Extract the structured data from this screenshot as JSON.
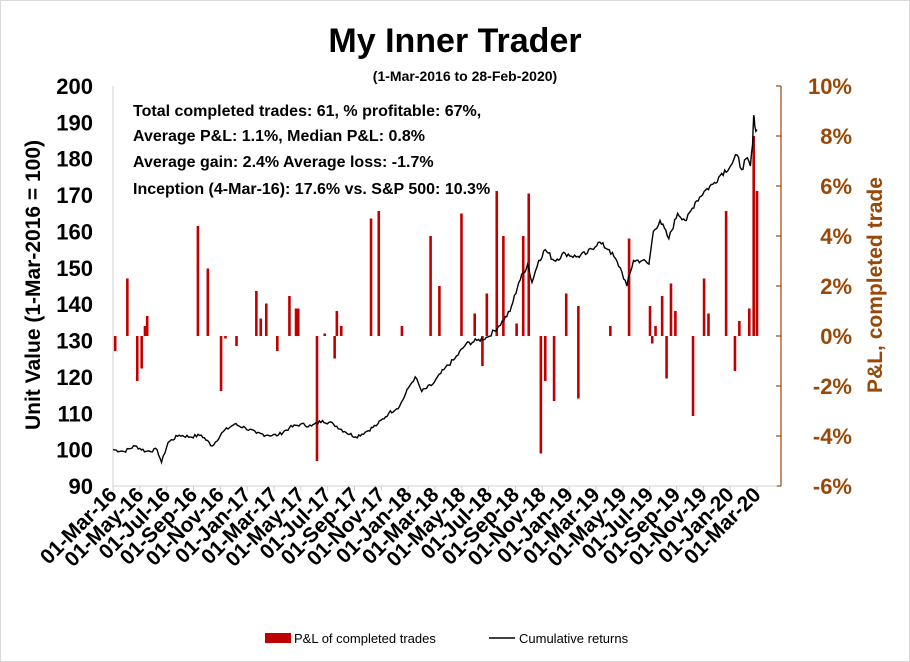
{
  "chart_data": {
    "type": "bar+line",
    "title": "My Inner Trader",
    "subtitle": "(1-Mar-2016 to 28-Feb-2020)",
    "y_left": {
      "label": "Unit Value (1-Mar-2016 = 100)",
      "lim": [
        90,
        200
      ],
      "ticks": [
        "90",
        "100",
        "110",
        "120",
        "130",
        "140",
        "150",
        "160",
        "170",
        "180",
        "190",
        "200"
      ]
    },
    "y_right": {
      "label": "P&L, completed trade",
      "lim": [
        -6,
        10
      ],
      "ticks": [
        "-6%",
        "-4%",
        "-2%",
        "0%",
        "2%",
        "4%",
        "6%",
        "8%",
        "10%"
      ]
    },
    "x_ticks": [
      "01-Mar-16",
      "01-May-16",
      "01-Jul-16",
      "01-Sep-16",
      "01-Nov-16",
      "01-Jan-17",
      "01-Mar-17",
      "01-May-17",
      "01-Jul-17",
      "01-Sep-17",
      "01-Nov-17",
      "01-Jan-18",
      "01-Mar-18",
      "01-May-18",
      "01-Jul-18",
      "01-Sep-18",
      "01-Nov-18",
      "01-Jan-19",
      "01-Mar-19",
      "01-May-19",
      "01-Jul-19",
      "01-Sep-19",
      "01-Nov-19",
      "01-Jan-20",
      "01-Mar-20"
    ],
    "stats": [
      "Total completed trades: 61, % profitable: 67%,",
      "Average P&L: 1.1%, Median P&L: 0.8%",
      "Average gain: 2.4% Average loss: -1.7%",
      "Inception (4-Mar-16): 17.6% vs. S&P 500: 10.3%"
    ],
    "colors": {
      "bars": "#c00000",
      "line": "#000000",
      "right_axis": "#984807"
    },
    "series": [
      {
        "name": "P&L of completed trades",
        "type": "bar",
        "axis": "right",
        "points": [
          {
            "m": 0.1,
            "v": -0.6
          },
          {
            "m": 0.65,
            "v": 2.3
          },
          {
            "m": 1.1,
            "v": -1.8
          },
          {
            "m": 1.3,
            "v": -1.3
          },
          {
            "m": 1.45,
            "v": 0.4
          },
          {
            "m": 1.55,
            "v": 0.8
          },
          {
            "m": 3.85,
            "v": 4.4
          },
          {
            "m": 4.3,
            "v": 2.7
          },
          {
            "m": 4.9,
            "v": -2.2
          },
          {
            "m": 5.1,
            "v": -0.1
          },
          {
            "m": 5.6,
            "v": -0.4
          },
          {
            "m": 6.5,
            "v": 1.8
          },
          {
            "m": 6.7,
            "v": 0.7
          },
          {
            "m": 6.95,
            "v": 1.3
          },
          {
            "m": 7.45,
            "v": -0.6
          },
          {
            "m": 8.0,
            "v": 1.6
          },
          {
            "m": 8.3,
            "v": 1.1
          },
          {
            "m": 8.4,
            "v": 1.1
          },
          {
            "m": 9.25,
            "v": -5.0
          },
          {
            "m": 9.6,
            "v": 0.1
          },
          {
            "m": 10.05,
            "v": -0.9
          },
          {
            "m": 10.15,
            "v": 1.0
          },
          {
            "m": 10.35,
            "v": 0.4
          },
          {
            "m": 11.7,
            "v": 4.7
          },
          {
            "m": 12.05,
            "v": 5.0
          },
          {
            "m": 13.1,
            "v": 0.4
          },
          {
            "m": 14.4,
            "v": 4.0
          },
          {
            "m": 14.8,
            "v": 2.0
          },
          {
            "m": 15.8,
            "v": 4.9
          },
          {
            "m": 16.4,
            "v": 0.9
          },
          {
            "m": 16.75,
            "v": -1.2
          },
          {
            "m": 16.95,
            "v": 1.7
          },
          {
            "m": 17.4,
            "v": 5.8
          },
          {
            "m": 17.7,
            "v": 4.0
          },
          {
            "m": 18.3,
            "v": 0.5
          },
          {
            "m": 18.6,
            "v": 4.0
          },
          {
            "m": 18.85,
            "v": 5.7
          },
          {
            "m": 19.4,
            "v": -4.7
          },
          {
            "m": 19.6,
            "v": -1.8
          },
          {
            "m": 20.0,
            "v": -2.6
          },
          {
            "m": 20.55,
            "v": 1.7
          },
          {
            "m": 21.1,
            "v": -2.5
          },
          {
            "m": 21.1,
            "v": 1.2
          },
          {
            "m": 22.55,
            "v": 0.4
          },
          {
            "m": 23.4,
            "v": 3.9
          },
          {
            "m": 24.35,
            "v": 1.2
          },
          {
            "m": 24.45,
            "v": -0.3
          },
          {
            "m": 24.6,
            "v": 0.4
          },
          {
            "m": 24.9,
            "v": 1.6
          },
          {
            "m": 25.1,
            "v": -1.7
          },
          {
            "m": 25.3,
            "v": 2.1
          },
          {
            "m": 25.5,
            "v": 1.0
          },
          {
            "m": 26.3,
            "v": -3.2
          },
          {
            "m": 26.8,
            "v": 2.3
          },
          {
            "m": 27.0,
            "v": 0.9
          },
          {
            "m": 27.8,
            "v": 5.0
          },
          {
            "m": 28.2,
            "v": -1.4
          },
          {
            "m": 28.4,
            "v": 0.6
          },
          {
            "m": 28.85,
            "v": 1.1
          },
          {
            "m": 29.05,
            "v": 8.0
          },
          {
            "m": 29.2,
            "v": 5.8
          }
        ]
      },
      {
        "name": "Cumulative returns",
        "type": "line",
        "axis": "left",
        "points": [
          {
            "m": 0.0,
            "v": 100
          },
          {
            "m": 0.5,
            "v": 99.5
          },
          {
            "m": 1.0,
            "v": 101
          },
          {
            "m": 1.5,
            "v": 99.5
          },
          {
            "m": 2.0,
            "v": 100
          },
          {
            "m": 2.2,
            "v": 96.5
          },
          {
            "m": 2.5,
            "v": 102
          },
          {
            "m": 3.0,
            "v": 104
          },
          {
            "m": 3.5,
            "v": 103.5
          },
          {
            "m": 4.0,
            "v": 104
          },
          {
            "m": 4.5,
            "v": 101
          },
          {
            "m": 5.0,
            "v": 105
          },
          {
            "m": 5.5,
            "v": 107
          },
          {
            "m": 6.0,
            "v": 106
          },
          {
            "m": 6.5,
            "v": 104.5
          },
          {
            "m": 7.0,
            "v": 104
          },
          {
            "m": 7.5,
            "v": 104
          },
          {
            "m": 8.0,
            "v": 106
          },
          {
            "m": 8.5,
            "v": 107
          },
          {
            "m": 9.0,
            "v": 106.5
          },
          {
            "m": 9.5,
            "v": 108
          },
          {
            "m": 10.0,
            "v": 107
          },
          {
            "m": 10.5,
            "v": 105
          },
          {
            "m": 11.0,
            "v": 103.5
          },
          {
            "m": 11.5,
            "v": 105
          },
          {
            "m": 12.0,
            "v": 107
          },
          {
            "m": 12.5,
            "v": 110
          },
          {
            "m": 13.0,
            "v": 112
          },
          {
            "m": 13.4,
            "v": 117
          },
          {
            "m": 13.7,
            "v": 120
          },
          {
            "m": 14.0,
            "v": 116
          },
          {
            "m": 14.5,
            "v": 118
          },
          {
            "m": 15.0,
            "v": 122
          },
          {
            "m": 15.5,
            "v": 125
          },
          {
            "m": 16.0,
            "v": 129
          },
          {
            "m": 16.5,
            "v": 130
          },
          {
            "m": 17.0,
            "v": 131
          },
          {
            "m": 17.5,
            "v": 134
          },
          {
            "m": 18.0,
            "v": 138
          },
          {
            "m": 18.4,
            "v": 146
          },
          {
            "m": 18.8,
            "v": 151
          },
          {
            "m": 19.0,
            "v": 146
          },
          {
            "m": 19.3,
            "v": 152
          },
          {
            "m": 19.6,
            "v": 155
          },
          {
            "m": 20.0,
            "v": 152
          },
          {
            "m": 20.5,
            "v": 154
          },
          {
            "m": 21.0,
            "v": 153
          },
          {
            "m": 21.5,
            "v": 154
          },
          {
            "m": 22.0,
            "v": 157
          },
          {
            "m": 22.5,
            "v": 155
          },
          {
            "m": 23.0,
            "v": 150
          },
          {
            "m": 23.3,
            "v": 145
          },
          {
            "m": 23.6,
            "v": 152
          },
          {
            "m": 24.0,
            "v": 152
          },
          {
            "m": 24.3,
            "v": 151
          },
          {
            "m": 24.5,
            "v": 160
          },
          {
            "m": 24.8,
            "v": 163
          },
          {
            "m": 25.2,
            "v": 158
          },
          {
            "m": 25.6,
            "v": 165
          },
          {
            "m": 26.0,
            "v": 163
          },
          {
            "m": 26.4,
            "v": 168
          },
          {
            "m": 26.8,
            "v": 171
          },
          {
            "m": 27.2,
            "v": 173
          },
          {
            "m": 27.6,
            "v": 176
          },
          {
            "m": 28.0,
            "v": 178
          },
          {
            "m": 28.3,
            "v": 181
          },
          {
            "m": 28.5,
            "v": 177
          },
          {
            "m": 28.7,
            "v": 180
          },
          {
            "m": 28.9,
            "v": 178
          },
          {
            "m": 29.0,
            "v": 184
          },
          {
            "m": 29.05,
            "v": 192
          },
          {
            "m": 29.1,
            "v": 189
          },
          {
            "m": 29.2,
            "v": 188
          }
        ]
      }
    ],
    "legend": [
      {
        "label": "P&L of completed trades",
        "kind": "bar"
      },
      {
        "label": "Cumulative returns",
        "kind": "line"
      }
    ]
  }
}
